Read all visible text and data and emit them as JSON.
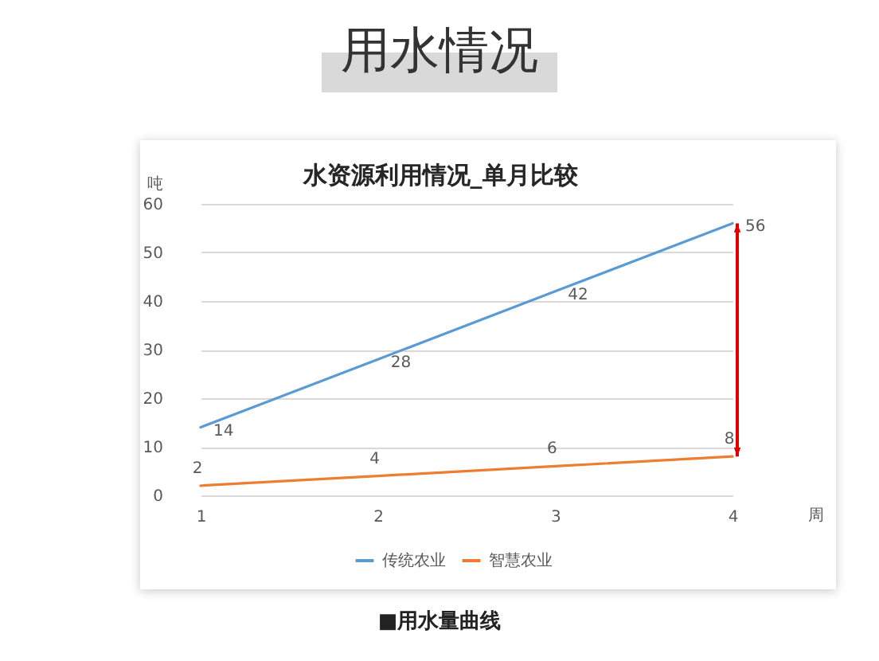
{
  "chart_data": {
    "type": "line",
    "title": "用水情况",
    "subtitle": "水资源利用情况_单月比较",
    "xlabel": "周",
    "ylabel": "吨",
    "categories": [
      "1",
      "2",
      "3",
      "4"
    ],
    "series": [
      {
        "name": "传统农业",
        "color": "#5b9bd5",
        "values": [
          14,
          28,
          42,
          56
        ]
      },
      {
        "name": "智慧农业",
        "color": "#ed7d31",
        "values": [
          2,
          4,
          6,
          8
        ]
      }
    ],
    "ylim": [
      0,
      60
    ],
    "yticks": [
      0,
      10,
      20,
      30,
      40,
      50,
      60
    ],
    "grid": "y",
    "legend": "bottom",
    "data_labels": true,
    "annotations": [
      "■用水量曲线"
    ]
  }
}
